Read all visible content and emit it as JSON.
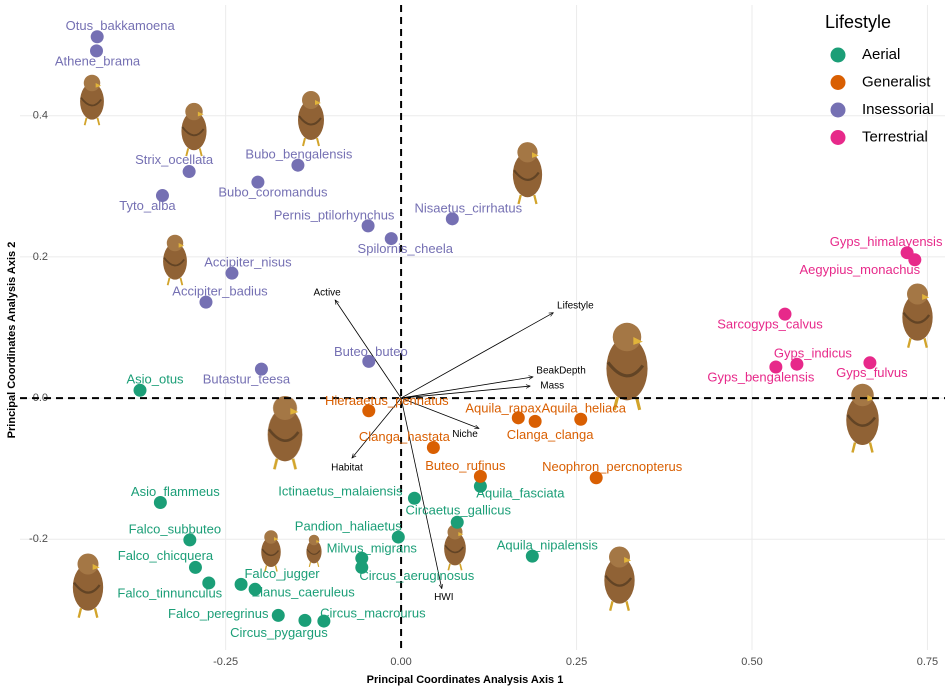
{
  "chart_data": {
    "type": "scatter",
    "x_label": "Principal Coordinates Analysis  Axis 1",
    "y_label": "Principal Coordinates Analysis  Axis 2",
    "legend_title": "Lifestyle",
    "legend_position": "top-right",
    "grid": true,
    "xlim": [
      -0.543,
      0.775
    ],
    "ylim": [
      -0.357,
      0.557
    ],
    "xticks": [
      -0.25,
      {
        "value": 0,
        "label": "0.00"
      },
      0.25,
      {
        "value": 0.5,
        "label": "0.50"
      },
      0.75
    ],
    "yticks": [
      -0.2,
      {
        "value": 0,
        "label": "0.0"
      },
      0.2,
      0.4
    ],
    "series": [
      {
        "name": "Aerial",
        "color": "#1b9e77",
        "labels": [
          "Asio_otus",
          "Asio_flammeus",
          "Falco_subbuteo",
          "Falco_chicquera",
          "Falco_tinnunculus",
          "Falco_jugger",
          "Elanus_caeruleus",
          "Falco_peregrinus",
          "Circus_pygargus",
          "Circus_macrourus",
          "Milvus_migrans",
          "Circus_aeruginosus",
          "Pandion_haliaetus",
          "Ictinaetus_malaiensis",
          "Circaetus_gallicus",
          "Aquila_fasciata",
          "Aquila_nipalensis"
        ],
        "x": [
          -0.372,
          -0.343,
          -0.301,
          -0.293,
          -0.274,
          -0.228,
          -0.208,
          -0.175,
          -0.137,
          -0.11,
          -0.056,
          -0.056,
          -0.004,
          0.019,
          0.08,
          0.113,
          0.187
        ],
        "y": [
          0.011,
          -0.148,
          -0.201,
          -0.24,
          -0.262,
          -0.264,
          -0.271,
          -0.308,
          -0.315,
          -0.316,
          -0.227,
          -0.24,
          -0.197,
          -0.142,
          -0.176,
          -0.125,
          -0.224
        ]
      },
      {
        "name": "Generalist",
        "color": "#d95f02",
        "labels": [
          "Hieraaetus_pennatus",
          "Clanga_hastata",
          "Buteo_rufinus",
          "Aquila_rapax",
          "Clanga_clanga",
          "Aquila_heliaca",
          "Neophron_percnopterus"
        ],
        "x": [
          -0.046,
          0.046,
          0.113,
          0.167,
          0.191,
          0.256,
          0.278
        ],
        "y": [
          -0.018,
          -0.07,
          -0.111,
          -0.028,
          -0.033,
          -0.03,
          -0.113
        ]
      },
      {
        "name": "Insessorial",
        "color": "#7570b3",
        "labels": [
          "Otus_bakkamoena",
          "Athene_brama",
          "Strix_ocellata",
          "Tyto_alba",
          "Bubo_coromandus",
          "Bubo_bengalensis",
          "Pernis_ptilorhynchus",
          "Spilornis_cheela",
          "Nisaetus_cirrhatus",
          "Accipiter_nisus",
          "Accipiter_badius",
          "Butastur_teesa",
          "Buteo_buteo"
        ],
        "x": [
          -0.433,
          -0.434,
          -0.302,
          -0.34,
          -0.204,
          -0.147,
          -0.047,
          -0.014,
          0.073,
          -0.241,
          -0.278,
          -0.199,
          -0.046
        ],
        "y": [
          0.512,
          0.492,
          0.321,
          0.287,
          0.306,
          0.33,
          0.244,
          0.226,
          0.254,
          0.177,
          0.136,
          0.041,
          0.052
        ]
      },
      {
        "name": "Terrestrial",
        "color": "#e7298a",
        "labels": [
          "Gyps_himalayensis",
          "Aegypius_monachus",
          "Sarcogyps_calvus",
          "Gyps_indicus",
          "Gyps_bengalensis",
          "Gyps_fulvus"
        ],
        "x": [
          0.721,
          0.732,
          0.547,
          0.564,
          0.534,
          0.668
        ],
        "y": [
          0.206,
          0.196,
          0.119,
          0.048,
          0.044,
          0.05
        ]
      }
    ],
    "vectors": {
      "names": [
        "Active",
        "Lifestyle",
        "BeakDepth",
        "Mass",
        "Niche",
        "Habitat",
        "HWI"
      ],
      "x": [
        -0.094,
        0.217,
        0.188,
        0.184,
        0.111,
        -0.07,
        0.058
      ],
      "y": [
        0.139,
        0.121,
        0.03,
        0.017,
        -0.043,
        -0.085,
        -0.27
      ]
    }
  }
}
